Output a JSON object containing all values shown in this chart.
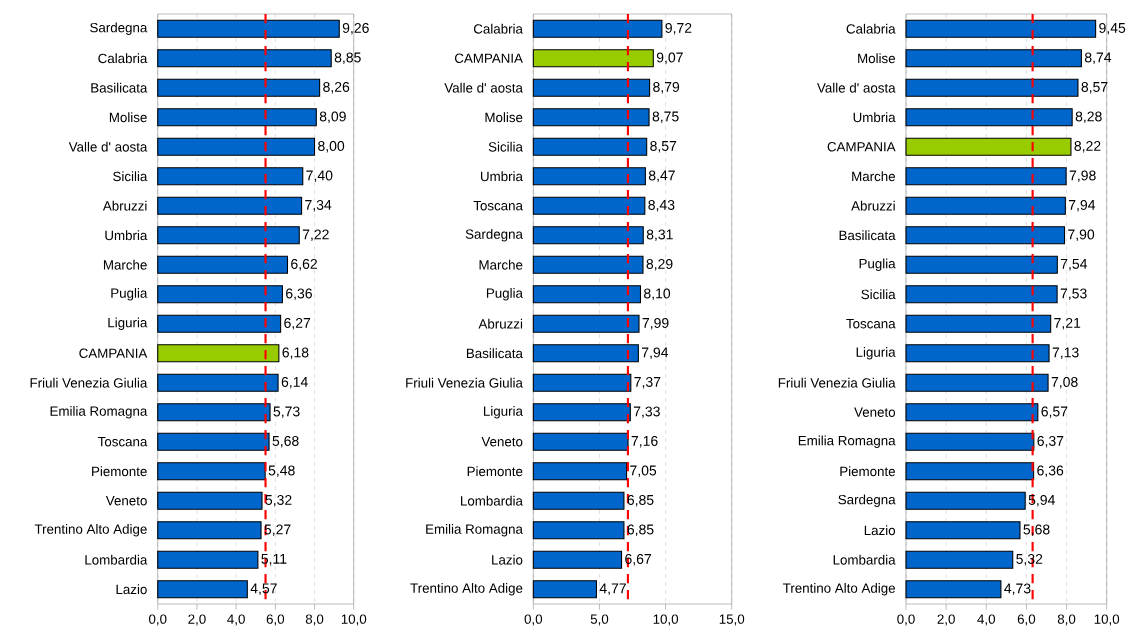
{
  "chart_data": [
    {
      "type": "bar",
      "orientation": "horizontal",
      "categories": [
        "Sardegna",
        "Calabria",
        "Basilicata",
        "Molise",
        "Valle d' aosta",
        "Sicilia",
        "Abruzzi",
        "Umbria",
        "Marche",
        "Puglia",
        "Liguria",
        "CAMPANIA",
        "Friuli Venezia Giulia",
        "Emilia Romagna",
        "Toscana",
        "Piemonte",
        "Veneto",
        "Trentino Alto Adige",
        "Lombardia",
        "Lazio"
      ],
      "values": [
        9.26,
        8.85,
        8.26,
        8.09,
        8.0,
        7.4,
        7.34,
        7.22,
        6.62,
        6.36,
        6.27,
        6.18,
        6.14,
        5.73,
        5.68,
        5.48,
        5.32,
        5.27,
        5.11,
        4.57
      ],
      "value_labels": [
        "9,26",
        "8,85",
        "8,26",
        "8,09",
        "8,00",
        "7,40",
        "7,34",
        "7,22",
        "6,62",
        "6,36",
        "6,27",
        "6,18",
        "6,14",
        "5,73",
        "5,68",
        "5,48",
        "5,32",
        "5,27",
        "5,11",
        "4,57"
      ],
      "colors": [
        "#0066cc",
        "#0066cc",
        "#0066cc",
        "#0066cc",
        "#0066cc",
        "#0066cc",
        "#0066cc",
        "#0066cc",
        "#0066cc",
        "#0066cc",
        "#0066cc",
        "#99cc00",
        "#0066cc",
        "#0066cc",
        "#0066cc",
        "#0066cc",
        "#0066cc",
        "#0066cc",
        "#0066cc",
        "#0066cc"
      ],
      "xlim": [
        0,
        10
      ],
      "xticks": [
        {
          "value": 0,
          "label": "0,0"
        },
        {
          "value": 2,
          "label": "2,0"
        },
        {
          "value": 4,
          "label": "4,0"
        },
        {
          "value": 6,
          "label": "6,0"
        },
        {
          "value": 8,
          "label": "8,0"
        },
        {
          "value": 10,
          "label": "10,0"
        }
      ],
      "grid": "x",
      "ref_lines": [
        {
          "axis": "x",
          "value": 5.5,
          "color": "#ff0000",
          "line_style": "dashed"
        }
      ]
    },
    {
      "type": "bar",
      "orientation": "horizontal",
      "categories": [
        "Calabria",
        "CAMPANIA",
        "Valle d' aosta",
        "Molise",
        "Sicilia",
        "Umbria",
        "Toscana",
        "Sardegna",
        "Marche",
        "Puglia",
        "Abruzzi",
        "Basilicata",
        "Friuli Venezia Giulia",
        "Liguria",
        "Veneto",
        "Piemonte",
        "Lombardia",
        "Emilia Romagna",
        "Lazio",
        "Trentino Alto Adige"
      ],
      "values": [
        9.72,
        9.07,
        8.79,
        8.75,
        8.57,
        8.47,
        8.43,
        8.31,
        8.29,
        8.1,
        7.99,
        7.94,
        7.37,
        7.33,
        7.16,
        7.05,
        6.85,
        6.85,
        6.67,
        4.77
      ],
      "value_labels": [
        "9,72",
        "9,07",
        "8,79",
        "8,75",
        "8,57",
        "8,47",
        "8,43",
        "8,31",
        "8,29",
        "8,10",
        "7,99",
        "7,94",
        "7,37",
        "7,33",
        "7,16",
        "7,05",
        "6,85",
        "6,85",
        "6,67",
        "4,77"
      ],
      "colors": [
        "#0066cc",
        "#99cc00",
        "#0066cc",
        "#0066cc",
        "#0066cc",
        "#0066cc",
        "#0066cc",
        "#0066cc",
        "#0066cc",
        "#0066cc",
        "#0066cc",
        "#0066cc",
        "#0066cc",
        "#0066cc",
        "#0066cc",
        "#0066cc",
        "#0066cc",
        "#0066cc",
        "#0066cc",
        "#0066cc"
      ],
      "xlim": [
        0,
        15
      ],
      "xticks": [
        {
          "value": 0,
          "label": "0,0"
        },
        {
          "value": 5,
          "label": "5,0"
        },
        {
          "value": 10,
          "label": "10,0"
        },
        {
          "value": 15,
          "label": "15,0"
        }
      ],
      "grid": "x",
      "ref_lines": [
        {
          "axis": "x",
          "value": 7.15,
          "color": "#ff0000",
          "line_style": "dashed"
        }
      ]
    },
    {
      "type": "bar",
      "orientation": "horizontal",
      "categories": [
        "Calabria",
        "Molise",
        "Valle d' aosta",
        "Umbria",
        "CAMPANIA",
        "Marche",
        "Abruzzi",
        "Basilicata",
        "Puglia",
        "Sicilia",
        "Toscana",
        "Liguria",
        "Friuli Venezia Giulia",
        "Veneto",
        "Emilia Romagna",
        "Piemonte",
        "Sardegna",
        "Lazio",
        "Lombardia",
        "Trentino Alto Adige"
      ],
      "values": [
        9.45,
        8.74,
        8.57,
        8.28,
        8.22,
        7.98,
        7.94,
        7.9,
        7.54,
        7.53,
        7.21,
        7.13,
        7.08,
        6.57,
        6.37,
        6.36,
        5.94,
        5.68,
        5.32,
        4.73
      ],
      "value_labels": [
        "9,45",
        "8,74",
        "8,57",
        "8,28",
        "8,22",
        "7,98",
        "7,94",
        "7,90",
        "7,54",
        "7,53",
        "7,21",
        "7,13",
        "7,08",
        "6,57",
        "6,37",
        "6,36",
        "5,94",
        "5,68",
        "5,32",
        "4,73"
      ],
      "colors": [
        "#0066cc",
        "#0066cc",
        "#0066cc",
        "#0066cc",
        "#99cc00",
        "#0066cc",
        "#0066cc",
        "#0066cc",
        "#0066cc",
        "#0066cc",
        "#0066cc",
        "#0066cc",
        "#0066cc",
        "#0066cc",
        "#0066cc",
        "#0066cc",
        "#0066cc",
        "#0066cc",
        "#0066cc",
        "#0066cc"
      ],
      "xlim": [
        0,
        10
      ],
      "xticks": [
        {
          "value": 0,
          "label": "0,0"
        },
        {
          "value": 2,
          "label": "2,0"
        },
        {
          "value": 4,
          "label": "4,0"
        },
        {
          "value": 6,
          "label": "6,0"
        },
        {
          "value": 8,
          "label": "8,0"
        },
        {
          "value": 10,
          "label": "10,0"
        }
      ],
      "grid": "x",
      "ref_lines": [
        {
          "axis": "x",
          "value": 6.31,
          "color": "#ff0000",
          "line_style": "dashed"
        }
      ]
    }
  ]
}
